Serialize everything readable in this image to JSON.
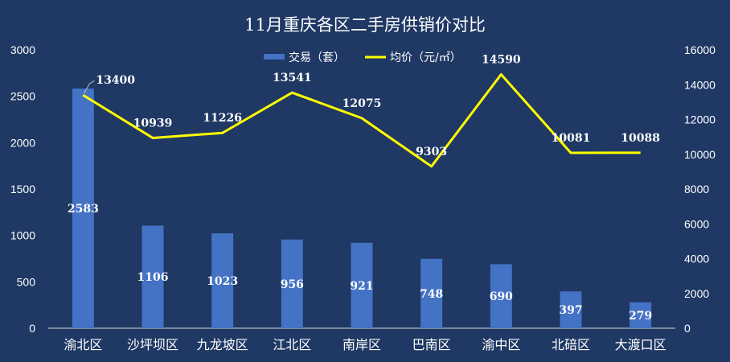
{
  "chart_data": {
    "type": "bar",
    "title": "11月重庆各区二手房供销价对比",
    "categories": [
      "渝北区",
      "沙坪坝区",
      "九龙坡区",
      "江北区",
      "南岸区",
      "巴南区",
      "渝中区",
      "北碚区",
      "大渡口区"
    ],
    "series": [
      {
        "name": "交易（套）",
        "type": "bar",
        "axis": "left",
        "color": "#4472c4",
        "values": [
          2583,
          1106,
          1023,
          956,
          921,
          748,
          690,
          397,
          279
        ]
      },
      {
        "name": "均价（元/㎡）",
        "type": "line",
        "axis": "right",
        "color": "#ffff00",
        "values": [
          13400,
          10939,
          11226,
          13541,
          12075,
          9303,
          14590,
          10081,
          10088
        ]
      }
    ],
    "y_left": {
      "ylim": [
        0,
        3000
      ],
      "ticks": [
        "0",
        "500",
        "1000",
        "1500",
        "2000",
        "2500",
        "3000"
      ]
    },
    "y_right": {
      "ylim": [
        0,
        16000
      ],
      "ticks": [
        "0",
        "2000",
        "4000",
        "6000",
        "8000",
        "10000",
        "12000",
        "14000",
        "16000"
      ]
    },
    "legend_position": "top-center",
    "grid": false,
    "background": "#1f3864"
  }
}
